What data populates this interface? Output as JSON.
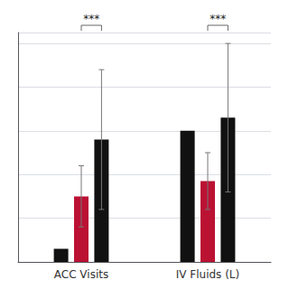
{
  "chart_data": {
    "type": "bar",
    "categories": [
      "ACC Visits",
      "IV Fluids (L)"
    ],
    "series": [
      {
        "color": "#111111",
        "values": [
          0.06,
          0.6
        ],
        "yerr": [
          0,
          0
        ]
      },
      {
        "color": "#bb1133",
        "values": [
          0.3,
          0.37
        ],
        "yerr": [
          0.14,
          0.13
        ]
      },
      {
        "color": "#111111",
        "values": [
          0.56,
          0.66
        ],
        "yerr": [
          0.32,
          0.34
        ]
      }
    ],
    "significance": [
      "***",
      "***"
    ],
    "ylim": [
      0,
      1.05
    ],
    "yticks": [
      0,
      0.2,
      0.4,
      0.6,
      0.8,
      1.0
    ],
    "grid": true,
    "tick_labels": "x"
  }
}
